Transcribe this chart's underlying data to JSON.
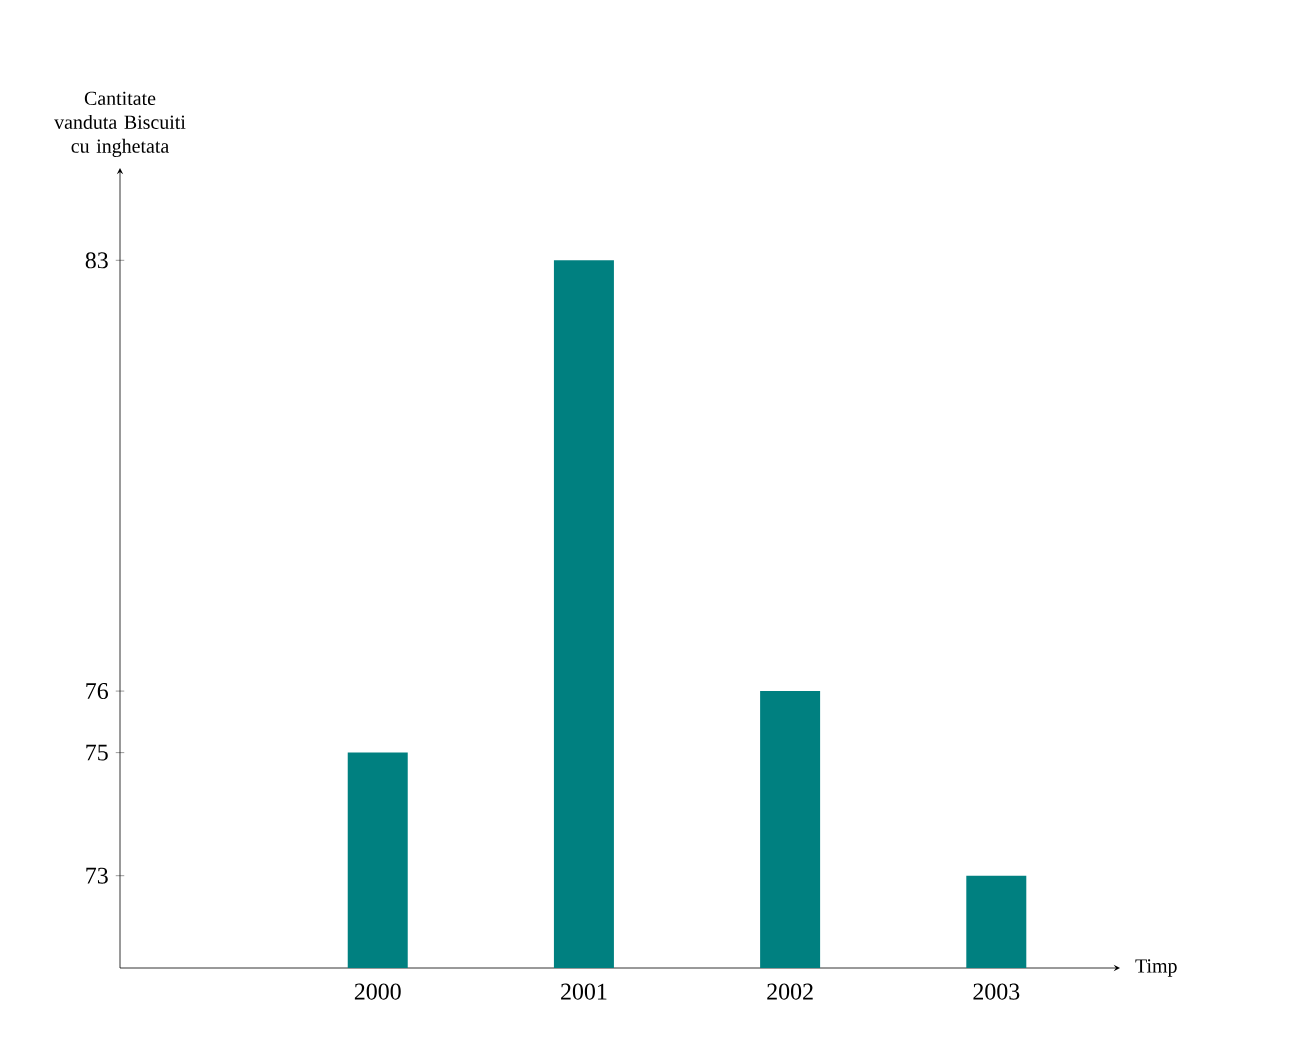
{
  "chart_data": {
    "type": "bar",
    "xlabel": "Timp",
    "ylabel": "Cantitate vanduta Biscuiti cu inghetata",
    "categories": [
      "2000",
      "2001",
      "2002",
      "2003"
    ],
    "values": [
      75,
      83,
      76,
      73
    ],
    "color": "#008080",
    "ylim": [
      71.5,
      84.5
    ],
    "yticks": [
      73,
      75,
      76,
      83
    ]
  }
}
